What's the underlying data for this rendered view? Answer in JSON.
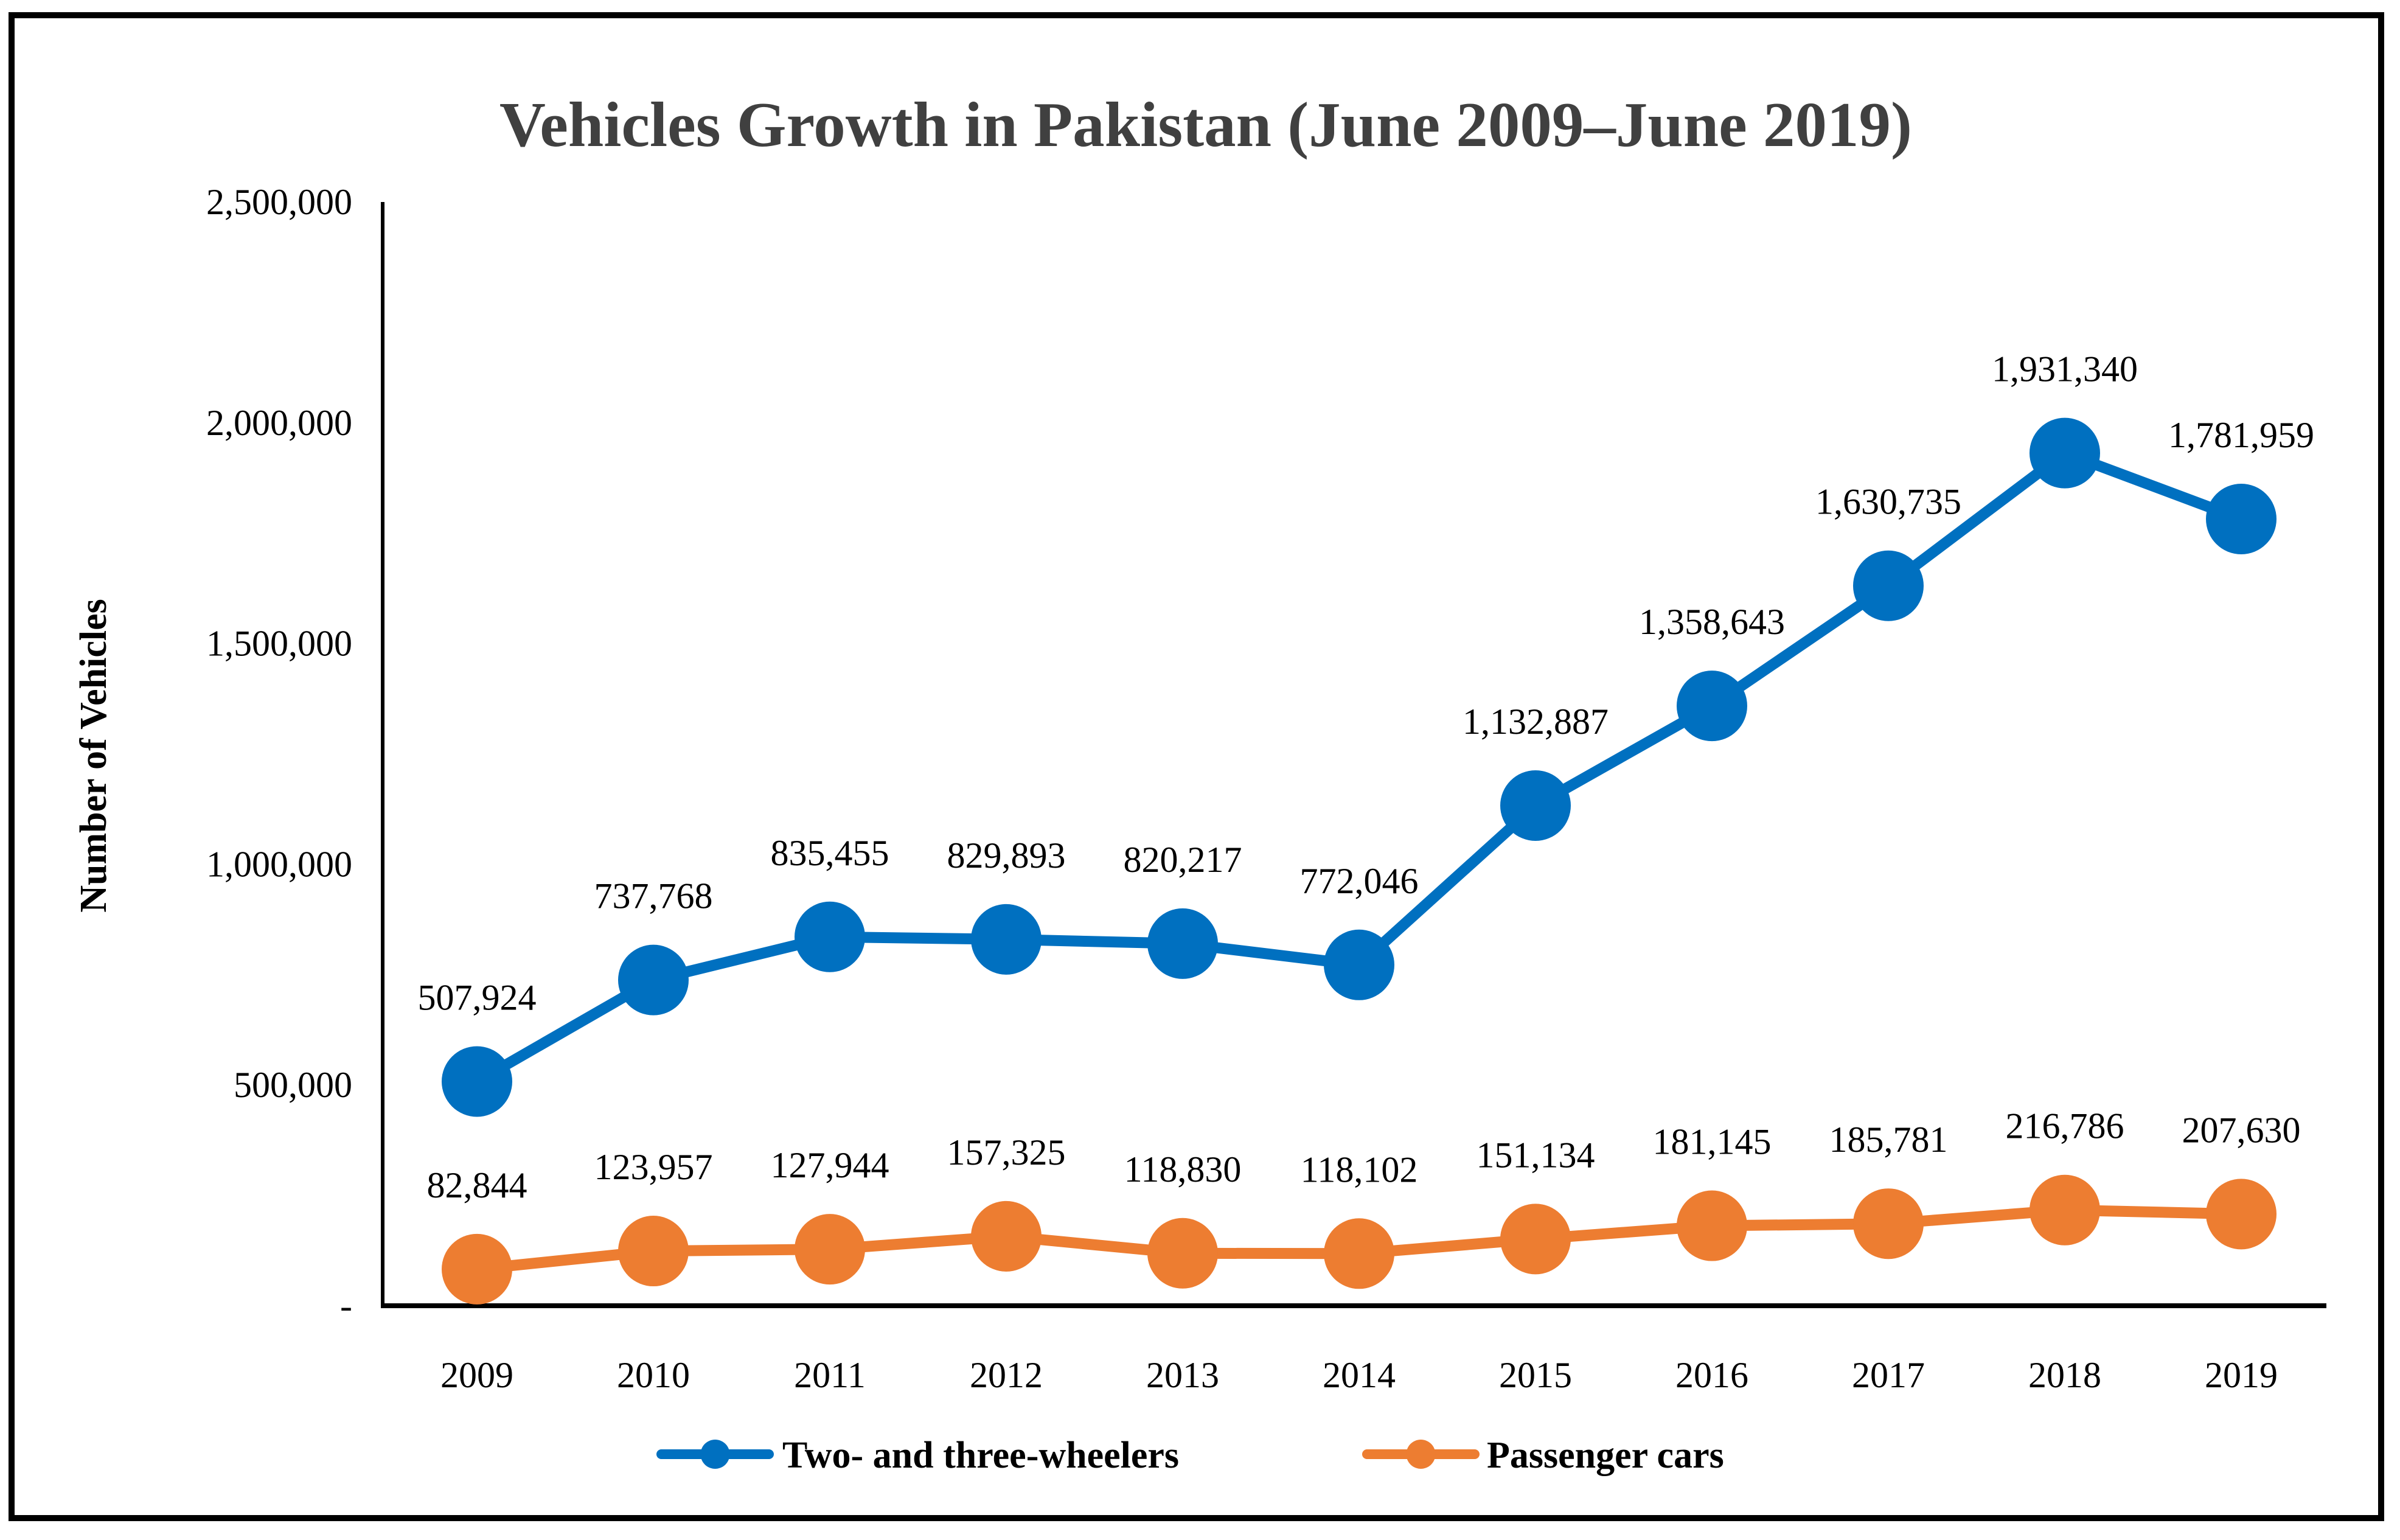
{
  "chart_data": {
    "type": "line",
    "title": "Vehicles Growth in Pakistan (June 2009–June 2019)",
    "xlabel": "",
    "ylabel": "Number of Vehicles",
    "categories": [
      "2009",
      "2010",
      "2011",
      "2012",
      "2013",
      "2014",
      "2015",
      "2016",
      "2017",
      "2018",
      "2019"
    ],
    "ylim": [
      0,
      2500000
    ],
    "yticks": [
      0,
      500000,
      1000000,
      1500000,
      2000000,
      2500000
    ],
    "ytick_labels": [
      "-",
      "500,000",
      "1,000,000",
      "1,500,000",
      "2,000,000",
      "2,500,000"
    ],
    "grid": false,
    "legend_position": "bottom",
    "series": [
      {
        "name": "Two- and three-wheelers",
        "color": "#0070C0",
        "values": [
          507924,
          737768,
          835455,
          829893,
          820217,
          772046,
          1132887,
          1358643,
          1630735,
          1931340,
          1781959
        ],
        "labels": [
          "507,924",
          "737,768",
          "835,455",
          "829,893",
          "820,217",
          "772,046",
          "1,132,887",
          "1,358,643",
          "1,630,735",
          "1,931,340",
          "1,781,959"
        ]
      },
      {
        "name": "Passenger cars",
        "color": "#ED7D31",
        "values": [
          82844,
          123957,
          127944,
          157325,
          118830,
          118102,
          151134,
          181145,
          185781,
          216786,
          207630
        ],
        "labels": [
          "82,844",
          "123,957",
          "127,944",
          "157,325",
          "118,830",
          "118,102",
          "151,134",
          "181,145",
          "185,781",
          "216,786",
          "207,630"
        ]
      }
    ]
  }
}
